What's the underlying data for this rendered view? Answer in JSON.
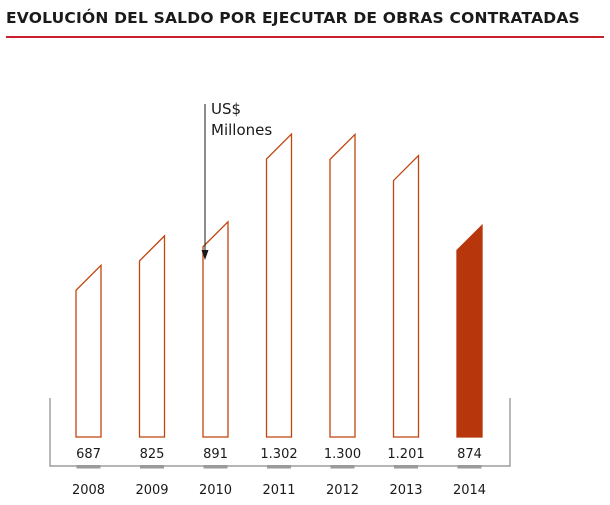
{
  "header": {
    "title": "EVOLUCIÓN DEL SALDO POR EJECUTAR DE OBRAS CONTRATADAS"
  },
  "colors": {
    "title_rule": "#c8202f",
    "bar_outline": "#c0450f",
    "highlight_fill": "#b8360c",
    "axis": "#8a8a8a",
    "tick": "#9a9a9a"
  },
  "chart_data": {
    "type": "bar",
    "categories": [
      "2008",
      "2009",
      "2010",
      "2011",
      "2012",
      "2013",
      "2014"
    ],
    "values": [
      687,
      825,
      891,
      1302,
      1300,
      1201,
      874
    ],
    "value_labels": [
      "687",
      "825",
      "891",
      "1.302",
      "1.300",
      "1.201",
      "874"
    ],
    "unit_label": [
      "US$",
      "Millones"
    ],
    "highlight_index": 6,
    "xlabel": "",
    "ylabel": "",
    "grid": false,
    "legend": "none"
  }
}
